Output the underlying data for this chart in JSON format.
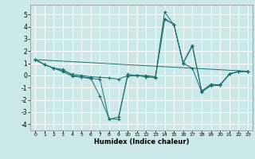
{
  "title": "",
  "xlabel": "Humidex (Indice chaleur)",
  "xlim": [
    -0.5,
    23.5
  ],
  "ylim": [
    -4.5,
    5.8
  ],
  "yticks": [
    -4,
    -3,
    -2,
    -1,
    0,
    1,
    2,
    3,
    4,
    5
  ],
  "xticks": [
    0,
    1,
    2,
    3,
    4,
    5,
    6,
    7,
    8,
    9,
    10,
    11,
    12,
    13,
    14,
    15,
    16,
    17,
    18,
    19,
    20,
    21,
    22,
    23
  ],
  "background_color": "#cde8e8",
  "grid_color": "#ffffff",
  "line_color": "#1a7070",
  "lines": [
    {
      "x": [
        0,
        1,
        2,
        3,
        4,
        5,
        6,
        7,
        8,
        9,
        10,
        11,
        12,
        13,
        14,
        15,
        16,
        17,
        18,
        19,
        20,
        21,
        22,
        23
      ],
      "y": [
        1.3,
        0.9,
        0.6,
        0.5,
        0.0,
        -0.1,
        -0.2,
        -1.7,
        -3.55,
        -3.6,
        0.1,
        0.0,
        -0.1,
        -0.2,
        4.65,
        4.2,
        1.0,
        2.4,
        -1.3,
        -0.7,
        -0.8,
        0.1,
        0.35,
        0.3
      ]
    },
    {
      "x": [
        0,
        1,
        2,
        3,
        4,
        5,
        6,
        7,
        8,
        9,
        10,
        11,
        12,
        13,
        14,
        15,
        16,
        17,
        18,
        19,
        20,
        21,
        22,
        23
      ],
      "y": [
        1.3,
        0.9,
        0.6,
        0.4,
        0.1,
        0.0,
        -0.1,
        -0.15,
        -0.2,
        -0.3,
        0.0,
        0.0,
        0.0,
        -0.1,
        5.2,
        4.15,
        1.0,
        0.6,
        -1.35,
        -0.85,
        -0.8,
        0.15,
        0.3,
        0.35
      ]
    },
    {
      "x": [
        0,
        1,
        2,
        3,
        4,
        5,
        6,
        7,
        8,
        9,
        10,
        11,
        12,
        13,
        14,
        15,
        16,
        17,
        18,
        19,
        20,
        21,
        22,
        23
      ],
      "y": [
        1.3,
        0.9,
        0.6,
        0.3,
        -0.05,
        -0.15,
        -0.25,
        -0.3,
        -3.6,
        -3.4,
        -0.05,
        0.0,
        -0.1,
        -0.15,
        4.6,
        4.2,
        1.05,
        2.5,
        -1.25,
        -0.8,
        -0.75,
        0.1,
        0.35,
        0.35
      ]
    },
    {
      "x": [
        0,
        23
      ],
      "y": [
        1.3,
        0.35
      ]
    }
  ]
}
